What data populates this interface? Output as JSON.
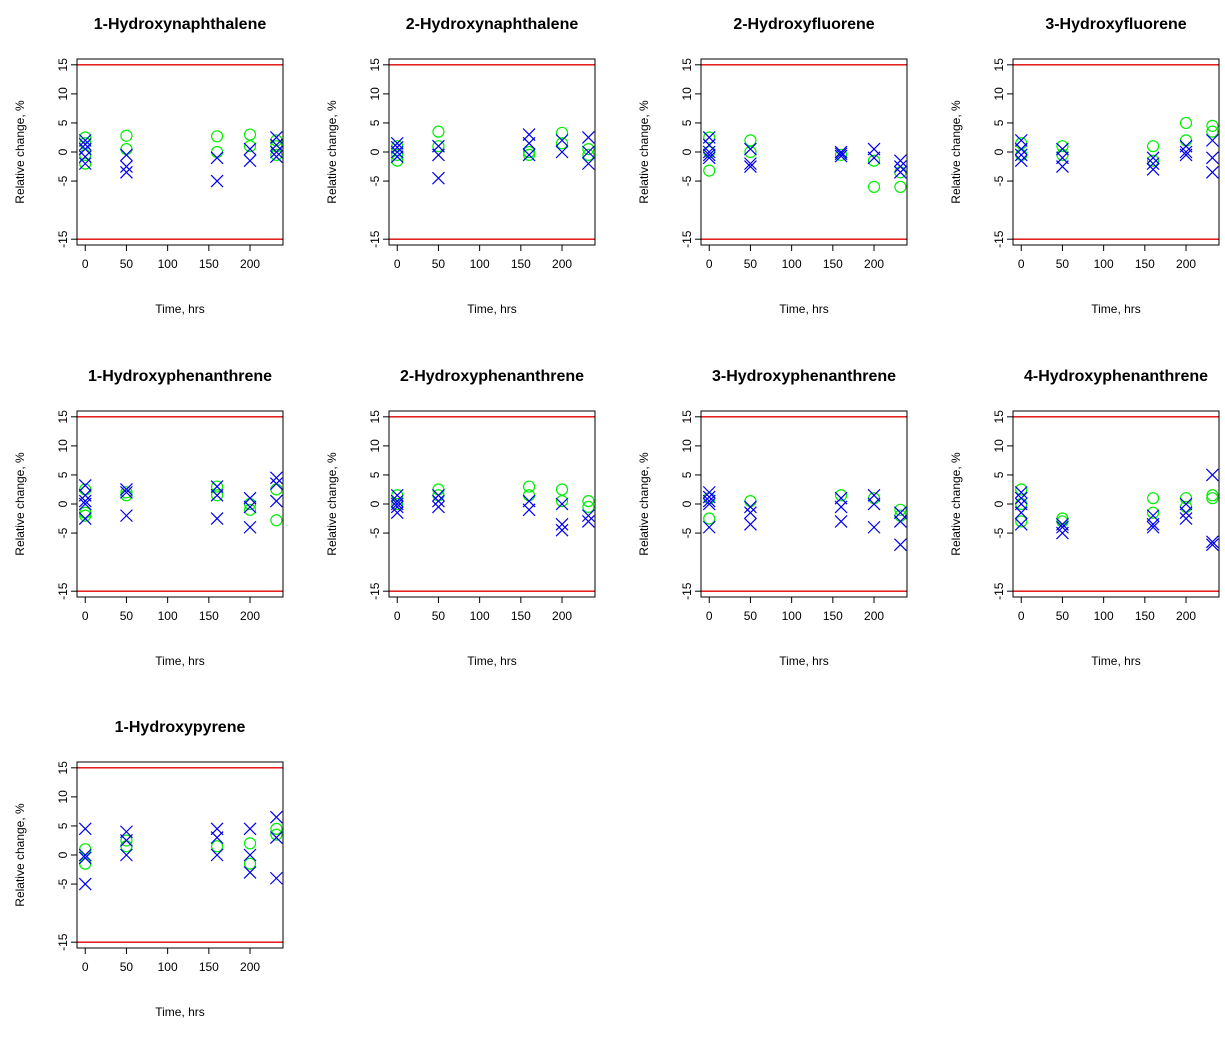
{
  "figure": {
    "colors": {
      "series_circle": "#00ee00",
      "series_cross": "#0000ee",
      "reference_line": "#e00000",
      "axis": "#000000"
    }
  },
  "chart_data": [
    {
      "type": "scatter",
      "title": "1-Hydroxynaphthalene",
      "xlabel": "Time, hrs",
      "ylabel": "Relative change, %",
      "xlim": [
        -10,
        240
      ],
      "ylim": [
        -16,
        16
      ],
      "xticks": [
        "0",
        "50",
        "100",
        "150",
        "200"
      ],
      "yticks": [
        "-15",
        "-5",
        "0",
        "5",
        "10",
        "15"
      ],
      "hlines": [
        15,
        -15
      ],
      "series": [
        {
          "marker": "circle",
          "x": [
            0,
            0,
            0,
            0,
            50,
            50,
            160,
            160,
            200,
            200,
            232,
            232,
            232
          ],
          "y": [
            2.5,
            1.5,
            -0.5,
            -2,
            2.8,
            0.5,
            2.7,
            0,
            3,
            1,
            2,
            1,
            -0.5
          ]
        },
        {
          "marker": "cross",
          "x": [
            0,
            0,
            0,
            0,
            0,
            50,
            50,
            50,
            160,
            160,
            200,
            200,
            232,
            232,
            232,
            232
          ],
          "y": [
            2,
            1.3,
            0.5,
            -0.8,
            -2,
            -0.5,
            -2.5,
            -3.5,
            -5,
            -1,
            0.5,
            -1.5,
            2.5,
            1.2,
            0,
            -0.8
          ]
        }
      ]
    },
    {
      "type": "scatter",
      "title": "2-Hydroxynaphthalene",
      "xlabel": "Time, hrs",
      "ylabel": "Relative change, %",
      "xlim": [
        -10,
        240
      ],
      "ylim": [
        -16,
        16
      ],
      "xticks": [
        "0",
        "50",
        "100",
        "150",
        "200"
      ],
      "yticks": [
        "-15",
        "-5",
        "0",
        "5",
        "10",
        "15"
      ],
      "hlines": [
        15,
        -15
      ],
      "series": [
        {
          "marker": "circle",
          "x": [
            0,
            0,
            0,
            50,
            50,
            160,
            160,
            200,
            200,
            232,
            232
          ],
          "y": [
            1,
            -0.5,
            -1.5,
            3.5,
            1,
            0,
            -0.5,
            3.3,
            1.5,
            0.5,
            -0.5
          ]
        },
        {
          "marker": "cross",
          "x": [
            0,
            0,
            0,
            0,
            50,
            50,
            50,
            160,
            160,
            160,
            200,
            200,
            232,
            232,
            232
          ],
          "y": [
            1.5,
            0.8,
            0,
            -0.8,
            1,
            -0.5,
            -4.5,
            3,
            1.5,
            -0.5,
            2,
            0,
            2.5,
            0,
            -2
          ]
        }
      ]
    },
    {
      "type": "scatter",
      "title": "2-Hydroxyfluorene",
      "xlabel": "Time, hrs",
      "ylabel": "Relative change, %",
      "xlim": [
        -10,
        240
      ],
      "ylim": [
        -16,
        16
      ],
      "xticks": [
        "0",
        "50",
        "100",
        "150",
        "200"
      ],
      "yticks": [
        "-15",
        "-5",
        "0",
        "5",
        "10",
        "15"
      ],
      "hlines": [
        15,
        -15
      ],
      "series": [
        {
          "marker": "circle",
          "x": [
            0,
            0,
            0,
            50,
            50,
            160,
            200,
            200,
            232,
            232
          ],
          "y": [
            2.5,
            0,
            -3.2,
            2,
            0,
            -0.5,
            -1.5,
            -6,
            -3.5,
            -6
          ]
        },
        {
          "marker": "cross",
          "x": [
            0,
            0,
            0,
            0,
            0,
            50,
            50,
            50,
            160,
            160,
            160,
            200,
            200,
            232,
            232,
            232
          ],
          "y": [
            2.5,
            1.2,
            0,
            -1,
            -0.5,
            0.5,
            -2,
            -2.5,
            0,
            -0.7,
            -0.3,
            0.5,
            -1,
            -1.5,
            -2.5,
            -3.5
          ]
        }
      ]
    },
    {
      "type": "scatter",
      "title": "3-Hydroxyfluorene",
      "xlabel": "Time, hrs",
      "ylabel": "Relative change, %",
      "xlim": [
        -10,
        240
      ],
      "ylim": [
        -16,
        16
      ],
      "xticks": [
        "0",
        "50",
        "100",
        "150",
        "200"
      ],
      "yticks": [
        "-15",
        "-5",
        "0",
        "5",
        "10",
        "15"
      ],
      "hlines": [
        15,
        -15
      ],
      "series": [
        {
          "marker": "circle",
          "x": [
            0,
            0,
            50,
            50,
            160,
            160,
            200,
            200,
            232,
            232
          ],
          "y": [
            1.5,
            -0.5,
            1,
            -0.5,
            1,
            -1.5,
            5,
            2,
            4.5,
            3.5
          ]
        },
        {
          "marker": "cross",
          "x": [
            0,
            0,
            0,
            0,
            50,
            50,
            50,
            160,
            160,
            160,
            200,
            200,
            200,
            232,
            232,
            232
          ],
          "y": [
            2,
            0.5,
            -0.5,
            -1.5,
            0.5,
            -1,
            -2.5,
            -1,
            -2,
            -3,
            1,
            0,
            -0.5,
            2,
            -1,
            -3.5
          ]
        }
      ]
    },
    {
      "type": "scatter",
      "title": "1-Hydroxyphenanthrene",
      "xlabel": "Time, hrs",
      "ylabel": "Relative change, %",
      "xlim": [
        -10,
        240
      ],
      "ylim": [
        -16,
        16
      ],
      "xticks": [
        "0",
        "50",
        "100",
        "150",
        "200"
      ],
      "yticks": [
        "-15",
        "-5",
        "0",
        "5",
        "10",
        "15"
      ],
      "hlines": [
        15,
        -15
      ],
      "series": [
        {
          "marker": "circle",
          "x": [
            0,
            0,
            0,
            50,
            50,
            160,
            160,
            200,
            200,
            232,
            232
          ],
          "y": [
            2.5,
            -1.5,
            -2,
            2,
            1.5,
            3,
            1.5,
            0,
            -1,
            2.5,
            -2.8
          ]
        },
        {
          "marker": "cross",
          "x": [
            0,
            0,
            0,
            0,
            0,
            50,
            50,
            50,
            160,
            160,
            160,
            200,
            200,
            200,
            232,
            232,
            232
          ],
          "y": [
            3.2,
            1.5,
            0.5,
            0,
            -2.5,
            2.5,
            2,
            -2,
            3,
            1.5,
            -2.5,
            1,
            -0.5,
            -4,
            4.5,
            3.5,
            0.5
          ]
        }
      ]
    },
    {
      "type": "scatter",
      "title": "2-Hydroxyphenanthrene",
      "xlabel": "Time, hrs",
      "ylabel": "Relative change, %",
      "xlim": [
        -10,
        240
      ],
      "ylim": [
        -16,
        16
      ],
      "xticks": [
        "0",
        "50",
        "100",
        "150",
        "200"
      ],
      "yticks": [
        "-15",
        "-5",
        "0",
        "5",
        "10",
        "15"
      ],
      "hlines": [
        15,
        -15
      ],
      "series": [
        {
          "marker": "circle",
          "x": [
            0,
            0,
            50,
            50,
            160,
            160,
            200,
            200,
            232,
            232
          ],
          "y": [
            1.5,
            0,
            2.5,
            1.5,
            3,
            1.5,
            2.5,
            0.5,
            0.5,
            -0.5
          ]
        },
        {
          "marker": "cross",
          "x": [
            0,
            0,
            0,
            0,
            0,
            50,
            50,
            50,
            160,
            160,
            200,
            200,
            200,
            232,
            232
          ],
          "y": [
            1.5,
            0.5,
            0,
            -0.5,
            -1.5,
            1.5,
            0.5,
            -0.5,
            0.5,
            -1,
            0,
            -3.5,
            -4.5,
            -2,
            -3
          ]
        }
      ]
    },
    {
      "type": "scatter",
      "title": "3-Hydroxyphenanthrene",
      "xlabel": "Time, hrs",
      "ylabel": "Relative change, %",
      "xlim": [
        -10,
        240
      ],
      "ylim": [
        -16,
        16
      ],
      "xticks": [
        "0",
        "50",
        "100",
        "150",
        "200"
      ],
      "yticks": [
        "-15",
        "-5",
        "0",
        "5",
        "10",
        "15"
      ],
      "hlines": [
        15,
        -15
      ],
      "series": [
        {
          "marker": "circle",
          "x": [
            0,
            0,
            50,
            160,
            200,
            232,
            232
          ],
          "y": [
            1,
            -2.5,
            0.5,
            1.5,
            1,
            -1,
            -2
          ]
        },
        {
          "marker": "cross",
          "x": [
            0,
            0,
            0,
            0,
            0,
            50,
            50,
            50,
            160,
            160,
            160,
            200,
            200,
            200,
            232,
            232,
            232
          ],
          "y": [
            2,
            1.2,
            0.5,
            0,
            -4,
            -0.5,
            -1.5,
            -3.5,
            1,
            -0.5,
            -3,
            1.5,
            0,
            -4,
            -1.5,
            -3,
            -7
          ]
        }
      ]
    },
    {
      "type": "scatter",
      "title": "4-Hydroxyphenanthrene",
      "xlabel": "Time, hrs",
      "ylabel": "Relative change, %",
      "xlim": [
        -10,
        240
      ],
      "ylim": [
        -16,
        16
      ],
      "xticks": [
        "0",
        "50",
        "100",
        "150",
        "200"
      ],
      "yticks": [
        "-15",
        "-5",
        "0",
        "5",
        "10",
        "15"
      ],
      "hlines": [
        15,
        -15
      ],
      "series": [
        {
          "marker": "circle",
          "x": [
            0,
            0,
            0,
            50,
            50,
            160,
            160,
            200,
            200,
            232,
            232
          ],
          "y": [
            2.5,
            0,
            -3,
            -2.5,
            -3,
            1,
            -1.5,
            1,
            -0.5,
            1.5,
            1
          ]
        },
        {
          "marker": "cross",
          "x": [
            0,
            0,
            0,
            0,
            0,
            50,
            50,
            50,
            160,
            160,
            160,
            200,
            200,
            200,
            232,
            232,
            232
          ],
          "y": [
            2,
            1,
            0,
            -1.5,
            -3.5,
            -3.5,
            -4,
            -5,
            -2,
            -3.5,
            -4,
            0,
            -1.5,
            -2.5,
            5,
            -6.5,
            -7
          ]
        }
      ]
    },
    {
      "type": "scatter",
      "title": "1-Hydroxypyrene",
      "xlabel": "Time, hrs",
      "ylabel": "Relative change, %",
      "xlim": [
        -10,
        240
      ],
      "ylim": [
        -16,
        16
      ],
      "xticks": [
        "0",
        "50",
        "100",
        "150",
        "200"
      ],
      "yticks": [
        "-15",
        "-5",
        "0",
        "5",
        "10",
        "15"
      ],
      "hlines": [
        15,
        -15
      ],
      "series": [
        {
          "marker": "circle",
          "x": [
            0,
            0,
            50,
            50,
            160,
            200,
            200,
            232,
            232
          ],
          "y": [
            1,
            -1.5,
            2.5,
            1.5,
            1.5,
            2,
            -1.5,
            4.5,
            3.5
          ]
        },
        {
          "marker": "cross",
          "x": [
            0,
            0,
            0,
            0,
            50,
            50,
            50,
            160,
            160,
            160,
            200,
            200,
            200,
            232,
            232,
            232
          ],
          "y": [
            4.5,
            0,
            -0.5,
            -5,
            4,
            2.5,
            0,
            4.5,
            3,
            0,
            4.5,
            0,
            -3,
            6.5,
            3,
            -4
          ]
        }
      ]
    }
  ]
}
